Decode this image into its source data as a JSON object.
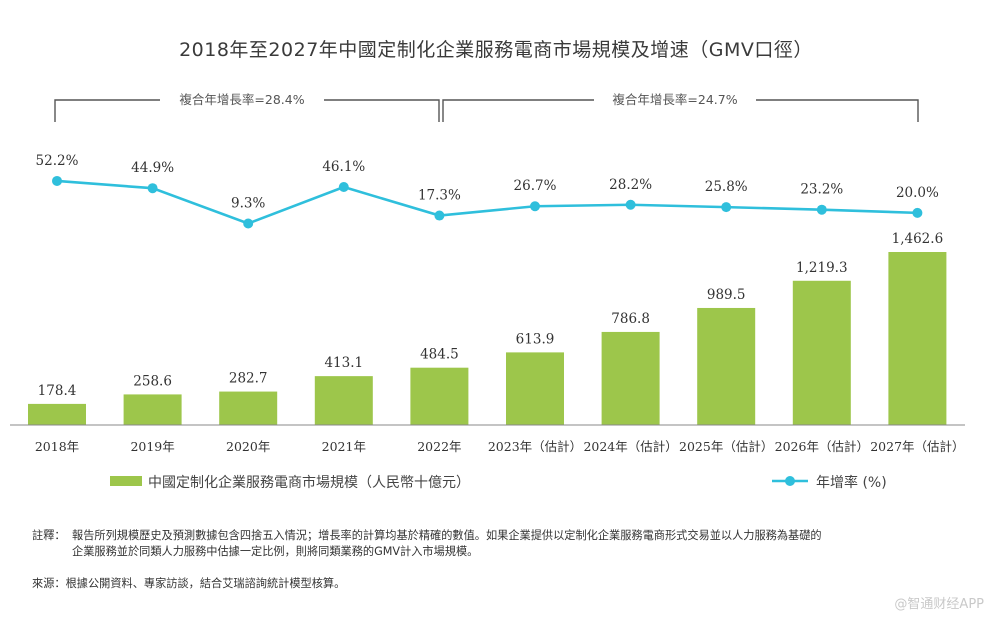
{
  "chart_data": {
    "type": "bar+line",
    "title": "2018年至2027年中國定制化企業服務電商市場規模及增速（GMV口徑）",
    "categories": [
      "2018年",
      "2019年",
      "2020年",
      "2021年",
      "2022年",
      "2023年（估計）",
      "2024年（估計）",
      "2025年（估計）",
      "2026年（估計）",
      "2027年（估計）"
    ],
    "series": [
      {
        "name": "中國定制化企業服務電商市場規模（人民幣十億元）",
        "kind": "bar",
        "values": [
          178.4,
          258.6,
          282.7,
          413.1,
          484.5,
          613.9,
          786.8,
          989.5,
          1219.3,
          1462.6
        ],
        "labels": [
          "178.4",
          "258.6",
          "282.7",
          "413.1",
          "484.5",
          "613.9",
          "786.8",
          "989.5",
          "1,219.3",
          "1,462.6"
        ],
        "color": "#9dc64b"
      },
      {
        "name": "年增率",
        "unit": "(%)",
        "kind": "line",
        "values": [
          52.2,
          44.9,
          9.3,
          46.1,
          17.3,
          26.7,
          28.2,
          25.8,
          23.2,
          20.0
        ],
        "labels": [
          "52.2%",
          "44.9%",
          "9.3%",
          "46.1%",
          "17.3%",
          "26.7%",
          "28.2%",
          "25.8%",
          "23.2%",
          "20.0%"
        ],
        "color": "#2fbfdc"
      }
    ],
    "annotations": {
      "cagr_left": "複合年增長率=28.4%",
      "cagr_right": "複合年增長率=24.7%"
    },
    "bar_ylim": [
      0,
      1600
    ],
    "line_ylim": [
      0,
      60
    ],
    "grid": false,
    "legend_position": "bottom"
  },
  "notes": {
    "note_label": "註釋：",
    "note_line1": "報告所列規模歷史及預測數據包含四捨五入情況；增長率的計算均基於精確的數值。如果企業提供以定制化企業服務電商形式交易並以人力服務為基礎的",
    "note_line2": "企業服務並於同類人力服務中估據一定比例，則將同類業務的GMV計入市場規模。",
    "source": "來源：根據公開資料、專家訪談，結合艾瑞諮詢統計模型核算。"
  },
  "watermark": "@智通财经APP"
}
